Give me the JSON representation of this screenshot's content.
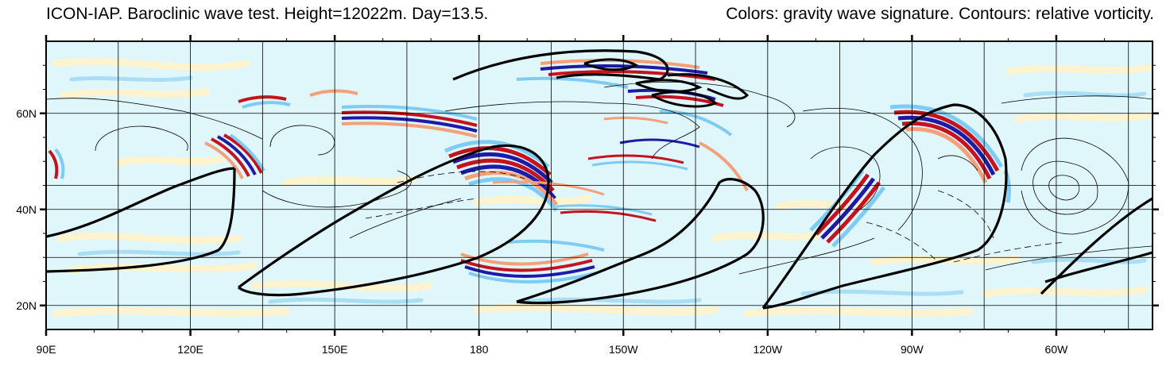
{
  "title": {
    "left": "ICON-IAP. Baroclinic wave test. Height=12022m. Day=13.5.",
    "right": "Colors: gravity wave signature. Contours: relative vorticity."
  },
  "axes": {
    "longitude": {
      "range": [
        90,
        320
      ],
      "major_ticks": [
        90,
        120,
        150,
        180,
        210,
        240,
        270,
        300
      ],
      "major_labels": [
        "90E",
        "120E",
        "150E",
        "180",
        "150W",
        "120W",
        "90W",
        "60W"
      ],
      "minor_ticks": [
        100,
        110,
        130,
        140,
        160,
        170,
        190,
        200,
        220,
        230,
        250,
        260,
        280,
        290,
        310
      ]
    },
    "latitude": {
      "range": [
        15,
        75
      ],
      "major_ticks": [
        20,
        40,
        60
      ],
      "major_labels": [
        "20N",
        "40N",
        "60N"
      ]
    },
    "grid_lines": {
      "lon": [
        105,
        135,
        165,
        195,
        225,
        255,
        285,
        315
      ],
      "lat": [
        30,
        45
      ]
    }
  },
  "colors": {
    "background": "#dff6fb",
    "pale_yellow": "#fdf3cf",
    "light_blue": "#7ecbf5",
    "dark_blue": "#1d1aa8",
    "light_red": "#f4a07a",
    "dark_red": "#c4131e",
    "contour": "#000000"
  }
}
